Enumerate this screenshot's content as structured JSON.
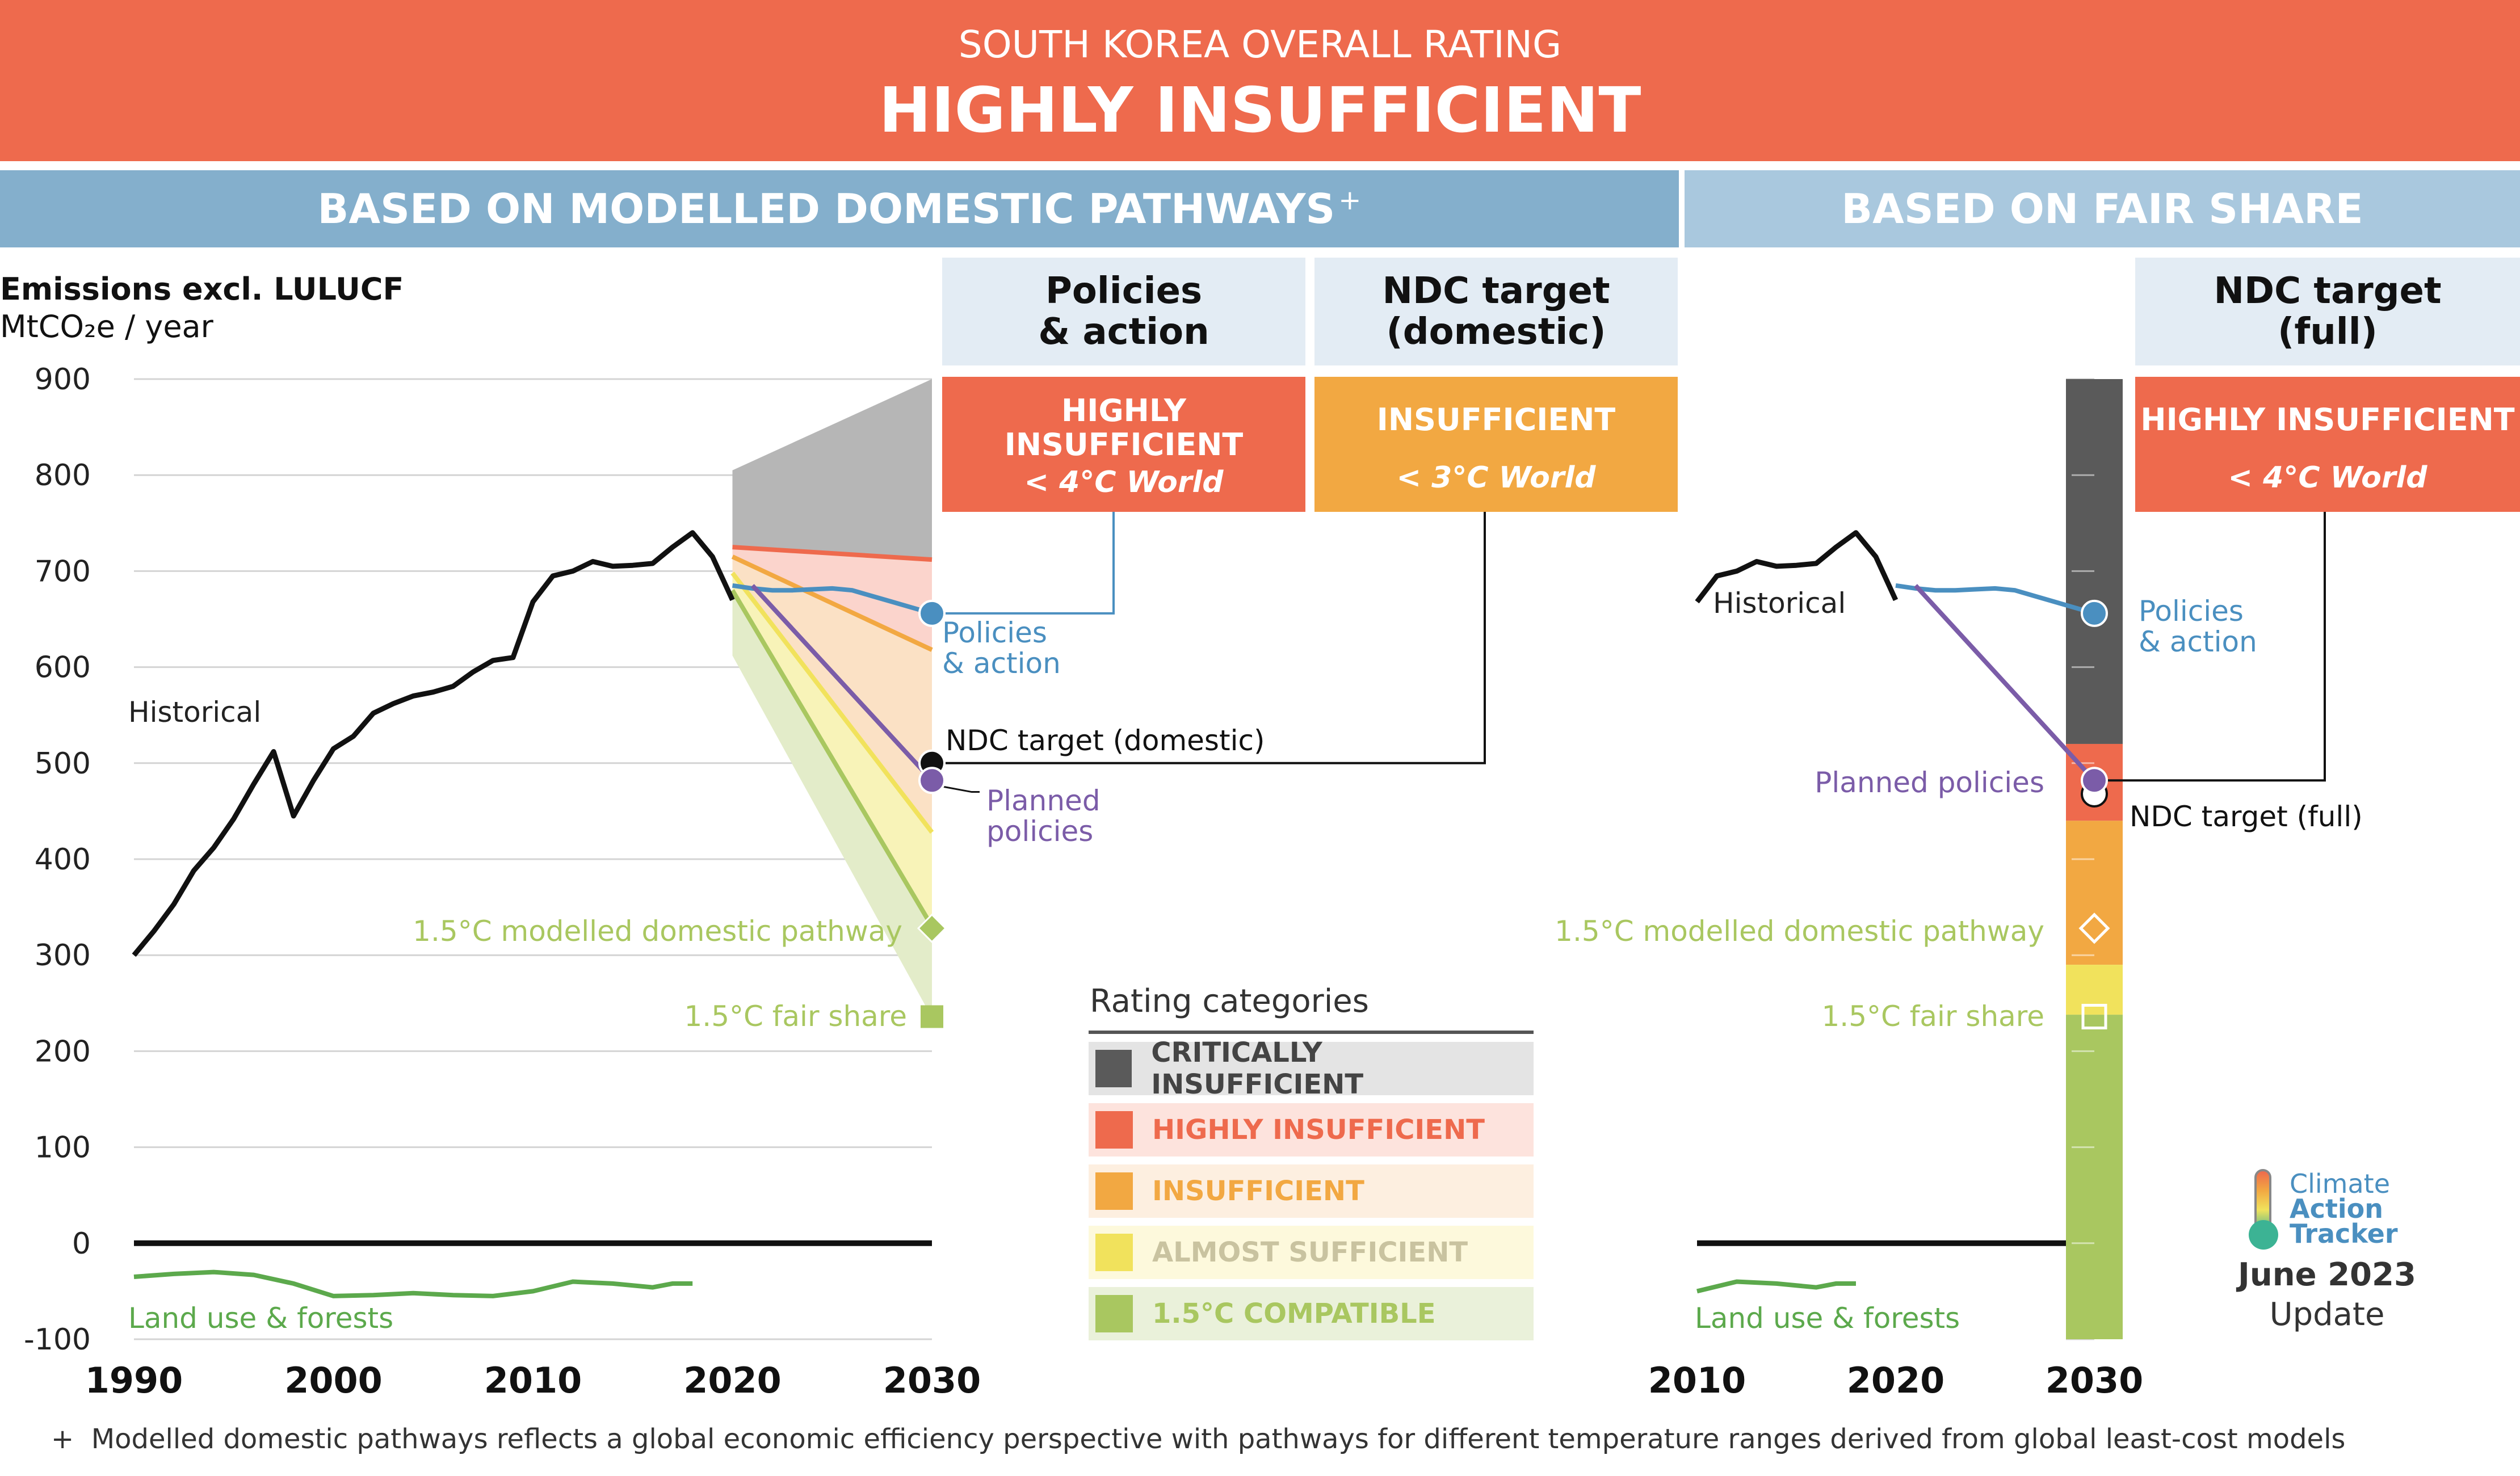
{
  "header": {
    "subtitle": "SOUTH KOREA OVERALL RATING",
    "title": "HIGHLY INSUFFICIENT"
  },
  "sections": {
    "left": "BASED ON MODELLED DOMESTIC PATHWAYS",
    "left_mark": "+",
    "right": "BASED ON FAIR SHARE"
  },
  "columns": {
    "policies": {
      "head_line1": "Policies",
      "head_line2": "& action",
      "rating_line1": "HIGHLY",
      "rating_line2": "INSUFFICIENT",
      "world": "< 4°C World"
    },
    "ndc_domestic": {
      "head_line1": "NDC target",
      "head_line2": "(domestic)",
      "rating": "INSUFFICIENT",
      "world": "< 3°C World"
    },
    "ndc_full": {
      "head_line1": "NDC target",
      "head_line2": "(full)",
      "rating": "HIGHLY INSUFFICIENT",
      "world": "< 4°C World"
    }
  },
  "colors": {
    "banner": "#ee6a4d",
    "section_left": "#84afcc",
    "section_right": "#a9c8de",
    "critically": "#5a5a5a",
    "highly": "#ee6a4d",
    "insufficient": "#f2a842",
    "almost": "#f1e25c",
    "compatible": "#a9c760",
    "policies_line": "#4a8fc0",
    "planned_line": "#7b5ca8",
    "lulucf": "#5ca94c"
  },
  "legend": {
    "title": "Rating categories",
    "items": [
      {
        "label": "CRITICALLY INSUFFICIENT",
        "color": "#5a5a5a",
        "text_color": "#444444",
        "bg": "#e4e4e4"
      },
      {
        "label": "HIGHLY INSUFFICIENT",
        "color": "#ee6a4d",
        "text_color": "#ee6a4d",
        "bg": "#fde3dd"
      },
      {
        "label": "INSUFFICIENT",
        "color": "#f2a842",
        "text_color": "#f2a842",
        "bg": "#fdefe0"
      },
      {
        "label": "ALMOST SUFFICIENT",
        "color": "#f1e25c",
        "text_color": "#c9c3a0",
        "bg": "#fdf9dc"
      },
      {
        "label": "1.5°C COMPATIBLE",
        "color": "#a9c760",
        "text_color": "#a9c760",
        "bg": "#eaf1da"
      }
    ]
  },
  "logo": {
    "line1": "Climate",
    "line2": "Action",
    "line3": "Tracker"
  },
  "update": {
    "line1": "June 2023",
    "line2": "Update"
  },
  "footnote": {
    "mark": "+",
    "text": "Modelled domestic pathways reflects a global economic efficiency perspective with pathways for different temperature ranges derived from global least-cost models"
  },
  "chart_data": [
    {
      "type": "line",
      "title": "Emissions excl. LULUCF",
      "ylabel": "MtCO₂e / year",
      "ylim": [
        -100,
        900
      ],
      "xlim": [
        1990,
        2030
      ],
      "yticks": [
        "900",
        "800",
        "700",
        "600",
        "500",
        "400",
        "300",
        "200",
        "100",
        "0",
        "-100"
      ],
      "xticks": [
        "1990",
        "2000",
        "2010",
        "2020",
        "2030"
      ],
      "series": [
        {
          "name": "Historical",
          "x": [
            1990,
            1991,
            1992,
            1993,
            1994,
            1995,
            1996,
            1997,
            1998,
            1999,
            2000,
            2001,
            2002,
            2003,
            2004,
            2005,
            2006,
            2007,
            2008,
            2009,
            2010,
            2011,
            2012,
            2013,
            2014,
            2015,
            2016,
            2017,
            2018,
            2019,
            2020
          ],
          "values": [
            300,
            325,
            353,
            388,
            412,
            442,
            478,
            512,
            445,
            482,
            515,
            528,
            552,
            562,
            570,
            574,
            580,
            595,
            607,
            610,
            668,
            695,
            700,
            710,
            705,
            706,
            708,
            725,
            740,
            715,
            670
          ]
        },
        {
          "name": "Policies & action",
          "x": [
            2020,
            2021,
            2022,
            2023,
            2024,
            2025,
            2026,
            2027,
            2028,
            2029,
            2030
          ],
          "values": [
            685,
            682,
            680,
            680,
            681,
            682,
            680,
            674,
            668,
            662,
            656
          ]
        },
        {
          "name": "Planned policies",
          "x": [
            2021,
            2030
          ],
          "values": [
            685,
            482
          ]
        },
        {
          "name": "Land use & forests",
          "x": [
            1990,
            1992,
            1994,
            1996,
            1998,
            2000,
            2002,
            2004,
            2006,
            2008,
            2010,
            2012,
            2014,
            2016,
            2017,
            2018
          ],
          "values": [
            -35,
            -32,
            -30,
            -33,
            -42,
            -55,
            -54,
            -52,
            -54,
            -55,
            -50,
            -40,
            -42,
            -46,
            -42,
            -42
          ]
        }
      ],
      "bands_2030": [
        {
          "name": "Critically insufficient",
          "y2020": [
            805,
            725
          ],
          "y2030": [
            900,
            712
          ]
        },
        {
          "name": "Highly insufficient",
          "y2020": [
            725,
            715
          ],
          "y2030": [
            712,
            618
          ]
        },
        {
          "name": "Insufficient",
          "y2020": [
            715,
            698
          ],
          "y2030": [
            618,
            428
          ]
        },
        {
          "name": "Almost sufficient",
          "y2020": [
            698,
            680
          ],
          "y2030": [
            428,
            330
          ]
        },
        {
          "name": "1.5°C compatible",
          "y2020": [
            680,
            612
          ],
          "y2030": [
            330,
            235
          ]
        }
      ],
      "points_2030": [
        {
          "name": "NDC target (domestic)",
          "value": 500
        },
        {
          "name": "1.5°C modelled domestic pathway",
          "value": 328
        },
        {
          "name": "1.5°C fair share",
          "value": 236
        }
      ],
      "labels": {
        "historical": "Historical",
        "policies_line1": "Policies",
        "policies_line2": "& action",
        "ndc_domestic": "NDC target (domestic)",
        "planned_line1": "Planned",
        "planned_line2": "policies",
        "modelled": "1.5°C modelled domestic pathway",
        "fairshare": "1.5°C fair share",
        "land_use": "Land use & forests"
      }
    },
    {
      "type": "line",
      "title": "Fair share",
      "xlim": [
        2010,
        2030
      ],
      "xticks": [
        "2010",
        "2020",
        "2030"
      ],
      "series": [
        {
          "name": "Historical",
          "x": [
            2010,
            2011,
            2012,
            2013,
            2014,
            2015,
            2016,
            2017,
            2018,
            2019,
            2020
          ],
          "values": [
            668,
            695,
            700,
            710,
            705,
            706,
            708,
            725,
            740,
            715,
            670
          ]
        },
        {
          "name": "Policies & action",
          "x": [
            2020,
            2021,
            2022,
            2023,
            2024,
            2025,
            2026,
            2027,
            2028,
            2029,
            2030
          ],
          "values": [
            685,
            682,
            680,
            680,
            681,
            682,
            680,
            674,
            668,
            662,
            656
          ]
        },
        {
          "name": "Planned policies",
          "x": [
            2021,
            2030
          ],
          "values": [
            685,
            482
          ]
        },
        {
          "name": "Land use & forests",
          "x": [
            2010,
            2012,
            2014,
            2016,
            2017,
            2018
          ],
          "values": [
            -50,
            -40,
            -42,
            -46,
            -42,
            -42
          ]
        }
      ],
      "bar_2030": [
        {
          "name": "Critically insufficient",
          "from": 520,
          "to": 900
        },
        {
          "name": "Highly insufficient",
          "from": 440,
          "to": 520
        },
        {
          "name": "Insufficient",
          "from": 290,
          "to": 440
        },
        {
          "name": "Almost sufficient",
          "from": 238,
          "to": 290
        },
        {
          "name": "1.5°C compatible",
          "from": -100,
          "to": 238
        }
      ],
      "points_2030": [
        {
          "name": "NDC target (full)",
          "value": 468
        },
        {
          "name": "1.5°C modelled domestic pathway",
          "value": 328
        },
        {
          "name": "1.5°C fair share",
          "value": 236
        }
      ],
      "labels": {
        "historical": "Historical",
        "policies_line1": "Policies",
        "policies_line2": "& action",
        "planned": "Planned policies",
        "ndc_full": "NDC target (full)",
        "modelled": "1.5°C modelled domestic pathway",
        "fairshare": "1.5°C fair share",
        "land_use": "Land use & forests"
      }
    }
  ]
}
